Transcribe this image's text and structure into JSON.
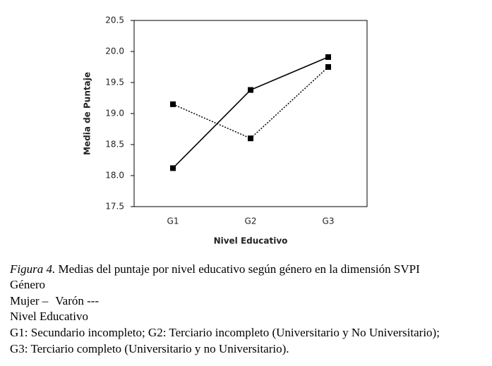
{
  "chart_data": {
    "type": "line",
    "y_label": "Media de Puntaje",
    "x_label": "Nivel Educativo",
    "categories": [
      "G1",
      "G2",
      "G3"
    ],
    "series": [
      {
        "name": "Mujer",
        "legend_symbol": "–",
        "color": "#000000",
        "line_style": "solid",
        "values": [
          18.12,
          19.38,
          19.91
        ]
      },
      {
        "name": "Varón",
        "legend_symbol": "---",
        "color": "#000000",
        "line_style": "dashed",
        "values": [
          19.15,
          18.6,
          19.75
        ]
      }
    ],
    "ylim": [
      17.5,
      20.5
    ],
    "yticks": [
      17.5,
      {
        "value": 18,
        "label": "18.0"
      },
      18.5,
      {
        "value": 19,
        "label": "19.0"
      },
      19.5,
      {
        "value": 20,
        "label": "20.0"
      },
      20.5
    ],
    "grid": false,
    "caption": {
      "figure_label": "Figura 4.",
      "figure_text": "Medias del puntaje por nivel educativo según género en la dimensión SVPI",
      "legend_title": "Género",
      "groups_title": "Nivel Educativo",
      "groups_line1": "G1: Secundario incompleto; G2: Terciario incompleto (Universitario y No Universitario);",
      "groups_line2": "G3: Terciario completo (Universitario y no Universitario)."
    }
  }
}
